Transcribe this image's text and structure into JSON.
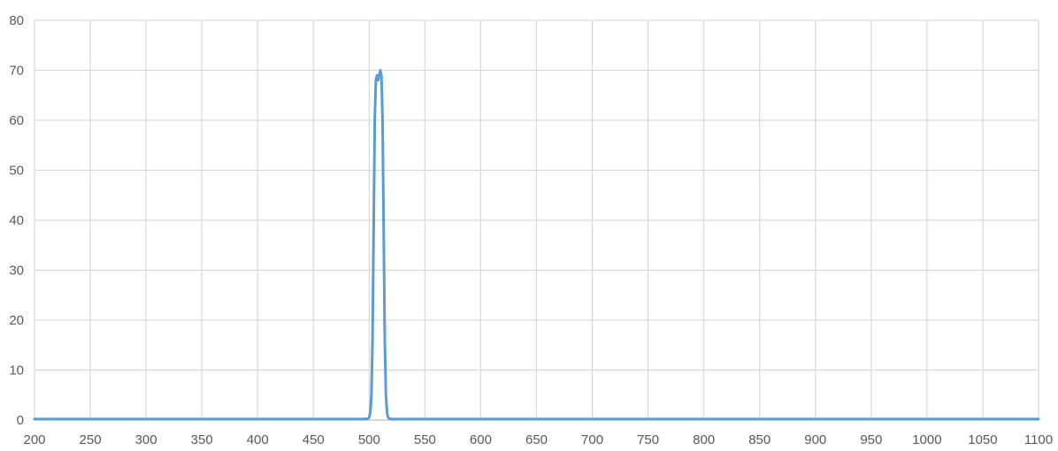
{
  "chart_data": {
    "type": "line",
    "title": "",
    "xlabel": "",
    "ylabel": "",
    "xlim": [
      200,
      1100
    ],
    "ylim": [
      0,
      80
    ],
    "x_ticks": [
      200,
      250,
      300,
      350,
      400,
      450,
      500,
      550,
      600,
      650,
      700,
      750,
      800,
      850,
      900,
      950,
      1000,
      1050,
      1100
    ],
    "y_ticks": [
      0,
      10,
      20,
      30,
      40,
      50,
      60,
      70,
      80
    ],
    "grid": true,
    "legend": "none",
    "colors": {
      "line": "#5B9BD5",
      "grid": "#D9D9D9",
      "axis": "#BFBFBF",
      "text": "#595959"
    },
    "series": [
      {
        "x": [
          200,
          300,
          400,
          480,
          495,
          499,
          500,
          501,
          502,
          503,
          504,
          505,
          506,
          507,
          508,
          509,
          510,
          511,
          512,
          513,
          514,
          515,
          516,
          517,
          518,
          520,
          530,
          600,
          700,
          800,
          900,
          1000,
          1100
        ],
        "values": [
          0.2,
          0.2,
          0.2,
          0.2,
          0.2,
          0.3,
          0.5,
          1.5,
          5,
          16,
          38,
          60,
          68,
          69,
          68,
          69,
          70,
          69,
          60,
          38,
          16,
          5,
          1.5,
          0.5,
          0.3,
          0.2,
          0.2,
          0.2,
          0.2,
          0.2,
          0.2,
          0.2,
          0.2
        ]
      }
    ]
  }
}
